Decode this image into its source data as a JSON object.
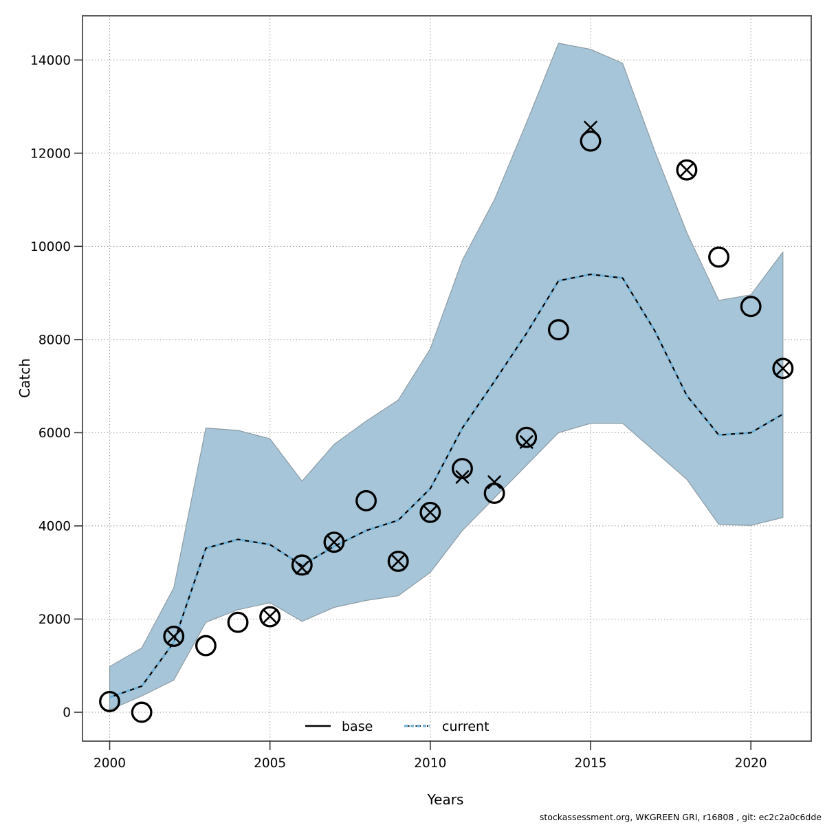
{
  "footer": {
    "text": "stockassessment.org, WKGREEN GRI, r16808 , git: ec2c2a0c6dde"
  },
  "axes": {
    "x_label": "Years",
    "y_label": "Catch",
    "x_ticks": [
      2000,
      2005,
      2010,
      2015,
      2020
    ],
    "y_ticks": [
      0,
      2000,
      4000,
      6000,
      8000,
      10000,
      12000,
      14000
    ]
  },
  "legend": [
    {
      "label": "base",
      "style": "solid",
      "color": "#000000"
    },
    {
      "label": "current",
      "style": "dotted",
      "color": "#6fb0d6"
    }
  ],
  "colors": {
    "band_fill": "#a6c5d8",
    "band_edge": "#8c9ba4",
    "current_line": "#6fb0d6",
    "base_line": "#000000",
    "grid": "#999999",
    "frame": "#4a4a4a",
    "tick": "#333333",
    "marker": "#000000"
  },
  "chart_data": {
    "type": "line",
    "title": "",
    "xlabel": "Years",
    "ylabel": "Catch",
    "xlim": [
      1999.2,
      2021.9
    ],
    "ylim": [
      -620,
      14950
    ],
    "grid": true,
    "legend_position": "bottom-center-inside",
    "x": [
      2000,
      2001,
      2002,
      2003,
      2004,
      2005,
      2006,
      2007,
      2008,
      2009,
      2010,
      2011,
      2012,
      2013,
      2014,
      2015,
      2016,
      2017,
      2018,
      2019,
      2020,
      2021
    ],
    "series": [
      {
        "name": "base",
        "style": "solid-black",
        "values": [
          320,
          560,
          1500,
          3520,
          3710,
          3600,
          3150,
          3560,
          3900,
          4120,
          4800,
          6100,
          7100,
          8130,
          9260,
          9400,
          9320,
          8190,
          6800,
          5950,
          6000,
          6400
        ]
      },
      {
        "name": "current",
        "style": "dotted-blue",
        "values": [
          320,
          560,
          1500,
          3520,
          3710,
          3600,
          3150,
          3560,
          3900,
          4120,
          4800,
          6100,
          7100,
          8130,
          9260,
          9400,
          9320,
          8190,
          6800,
          5950,
          6000,
          6400
        ]
      }
    ],
    "band": {
      "name": "confidence-interval",
      "upper": [
        980,
        1380,
        2670,
        6100,
        6050,
        5870,
        4960,
        5750,
        6250,
        6700,
        7800,
        9700,
        11000,
        12650,
        14360,
        14230,
        13930,
        12050,
        10300,
        8840,
        8960,
        9880
      ],
      "lower": [
        50,
        350,
        690,
        1930,
        2200,
        2350,
        1950,
        2250,
        2400,
        2500,
        3000,
        3900,
        4600,
        5300,
        6000,
        6200,
        6200,
        5600,
        5000,
        4030,
        4010,
        4180
      ]
    },
    "points": {
      "circles": [
        230,
        0,
        1630,
        1430,
        1930,
        2050,
        3160,
        3650,
        4540,
        3240,
        4290,
        5230,
        4700,
        5900,
        8210,
        12260,
        null,
        null,
        11640,
        9770,
        8710,
        7380
      ],
      "crosses": [
        null,
        null,
        1620,
        null,
        null,
        2060,
        3100,
        3650,
        null,
        3240,
        4290,
        5050,
        4940,
        5800,
        null,
        12550,
        null,
        null,
        11640,
        null,
        null,
        7380
      ]
    }
  }
}
